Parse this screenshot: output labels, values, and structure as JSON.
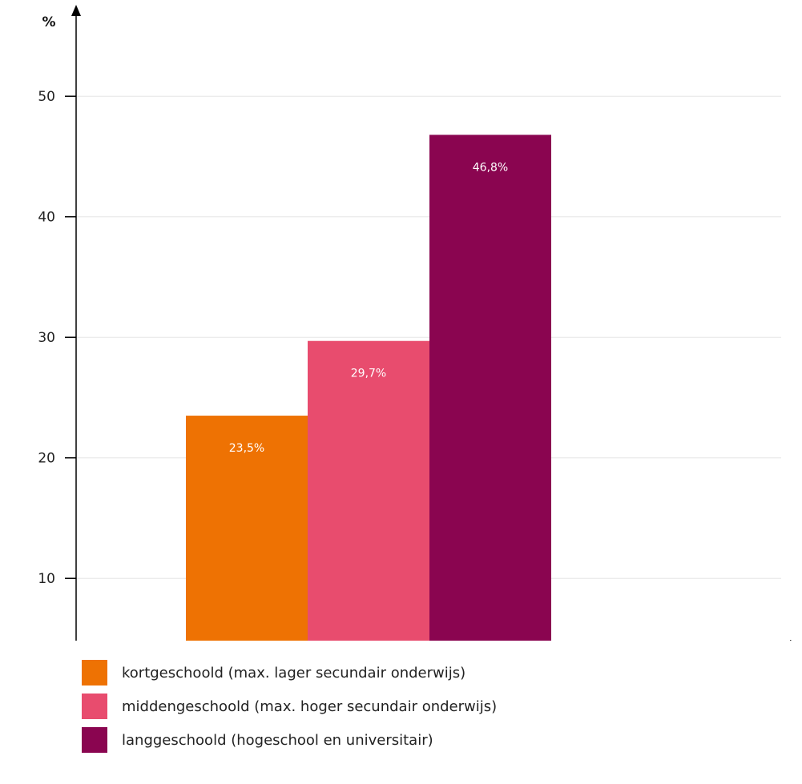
{
  "chart_data": {
    "type": "bar",
    "ylabel": "%",
    "yticks": [
      10,
      20,
      30,
      40,
      50
    ],
    "ylim": [
      4.5,
      54
    ],
    "grid": true,
    "legend_position": "bottom",
    "series": [
      {
        "name": "kortgeschoold (max. lager secundair onderwijs)",
        "value": 23.5,
        "label": "23,5%",
        "color": "#EE7203"
      },
      {
        "name": "middengeschoold (max. hoger secundair onderwijs)",
        "value": 29.7,
        "label": "29,7%",
        "color": "#E84C6E"
      },
      {
        "name": "langgeschoold (hogeschool en universitair)",
        "value": 46.8,
        "label": "46,8%",
        "color": "#8A0550"
      }
    ]
  }
}
